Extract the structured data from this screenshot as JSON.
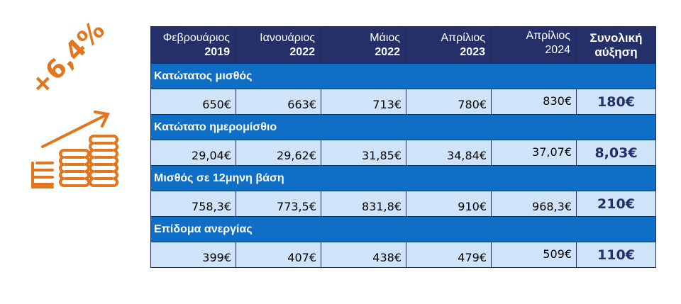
{
  "badge": {
    "text": "+6,4%",
    "color": "#e2761f",
    "icon": "coins-growth-arrow-icon"
  },
  "colors": {
    "header": "#25306b",
    "group": "#0f6fc6",
    "cell": "#cfe4f8"
  },
  "header": [
    {
      "month": "Φεβρουάριος",
      "year": "2019"
    },
    {
      "month": "Ιανουάριος",
      "year": "2022"
    },
    {
      "month": "Μάιος",
      "year": "2022"
    },
    {
      "month": "Απρίλιος",
      "year": "2023"
    },
    {
      "month": "Απρίλιος",
      "year": "2024"
    },
    {
      "line1": "Συνολική",
      "line2": "αύξηση"
    }
  ],
  "rows": [
    {
      "label": "Κατώτατος μισθός",
      "values": [
        "650€",
        "663€",
        "713€",
        "780€",
        "830€"
      ],
      "total": "180€"
    },
    {
      "label": "Κατώτατο ημερομίσθιο",
      "values": [
        "29,04€",
        "29,62€",
        "31,85€",
        "34,84€",
        "37,07€"
      ],
      "total": "8,03€"
    },
    {
      "label": "Μισθός σε 12μηνη βάση",
      "values": [
        "758,3€",
        "773,5€",
        "831,8€",
        "910€",
        "968,3€"
      ],
      "total": "210€"
    },
    {
      "label": "Επίδομα ανεργίας",
      "values": [
        "399€",
        "407€",
        "438€",
        "479€",
        "509€"
      ],
      "total": "110€"
    }
  ]
}
